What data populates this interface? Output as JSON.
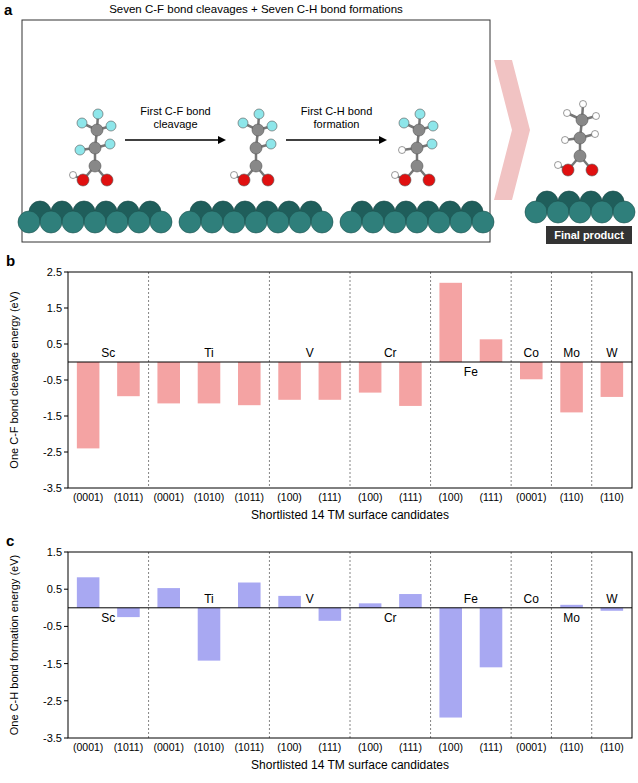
{
  "panel_a": {
    "panel": "a",
    "title": "Seven C-F bond cleavages + Seven C-H bond formations",
    "steps": [
      "First C-F bond cleavage",
      "First C-H bond formation"
    ],
    "final_label": "Final product"
  },
  "chart_data": [
    {
      "type": "bar",
      "panel": "b",
      "categories": [
        "(0001)",
        "(1011)",
        "(0001)",
        "(1010)",
        "(1011)",
        "(100)",
        "(111)",
        "(100)",
        "(111)",
        "(100)",
        "(111)",
        "(0001)",
        "(110)",
        "(110)"
      ],
      "groups": [
        {
          "name": "Sc",
          "size": 2
        },
        {
          "name": "Ti",
          "size": 3
        },
        {
          "name": "V",
          "size": 2
        },
        {
          "name": "Cr",
          "size": 2
        },
        {
          "name": "Fe",
          "size": 2
        },
        {
          "name": "Co",
          "size": 1
        },
        {
          "name": "Mo",
          "size": 1
        },
        {
          "name": "W",
          "size": 1
        }
      ],
      "values": [
        -2.4,
        -0.95,
        -1.15,
        -1.15,
        -1.2,
        -1.05,
        -1.05,
        -0.85,
        -1.22,
        2.2,
        0.63,
        -0.48,
        -1.4,
        -0.97
      ],
      "color": "#f4a3a3",
      "ylim": [
        -3.5,
        2.5
      ],
      "yticks": [
        -3.5,
        -2.5,
        -1.5,
        -0.5,
        0.5,
        1.5,
        2.5
      ],
      "ylabel": "One C-F bond cleavage energy (eV)",
      "xlabel": "Shortlisted 14 TM surface candidates",
      "grid": false
    },
    {
      "type": "bar",
      "panel": "c",
      "categories": [
        "(0001)",
        "(1011)",
        "(0001)",
        "(1010)",
        "(1011)",
        "(100)",
        "(111)",
        "(100)",
        "(111)",
        "(100)",
        "(111)",
        "(0001)",
        "(110)",
        "(110)"
      ],
      "groups": [
        {
          "name": "Sc",
          "size": 2
        },
        {
          "name": "Ti",
          "size": 3
        },
        {
          "name": "V",
          "size": 2
        },
        {
          "name": "Cr",
          "size": 2
        },
        {
          "name": "Fe",
          "size": 2
        },
        {
          "name": "Co",
          "size": 1
        },
        {
          "name": "Mo",
          "size": 1
        },
        {
          "name": "W",
          "size": 1
        }
      ],
      "values": [
        0.82,
        -0.25,
        0.53,
        -1.42,
        0.68,
        0.32,
        -0.35,
        0.12,
        0.37,
        -2.95,
        -1.6,
        0.0,
        0.08,
        -0.08
      ],
      "color": "#a8a8f2",
      "ylim": [
        -3.5,
        1.5
      ],
      "yticks": [
        -3.5,
        -2.5,
        -1.5,
        -0.5,
        0.5,
        1.5
      ],
      "ylabel": "One C-H bond formation energy (eV)",
      "xlabel": "Shortlisted 14 TM surface candidates",
      "grid": false
    }
  ]
}
